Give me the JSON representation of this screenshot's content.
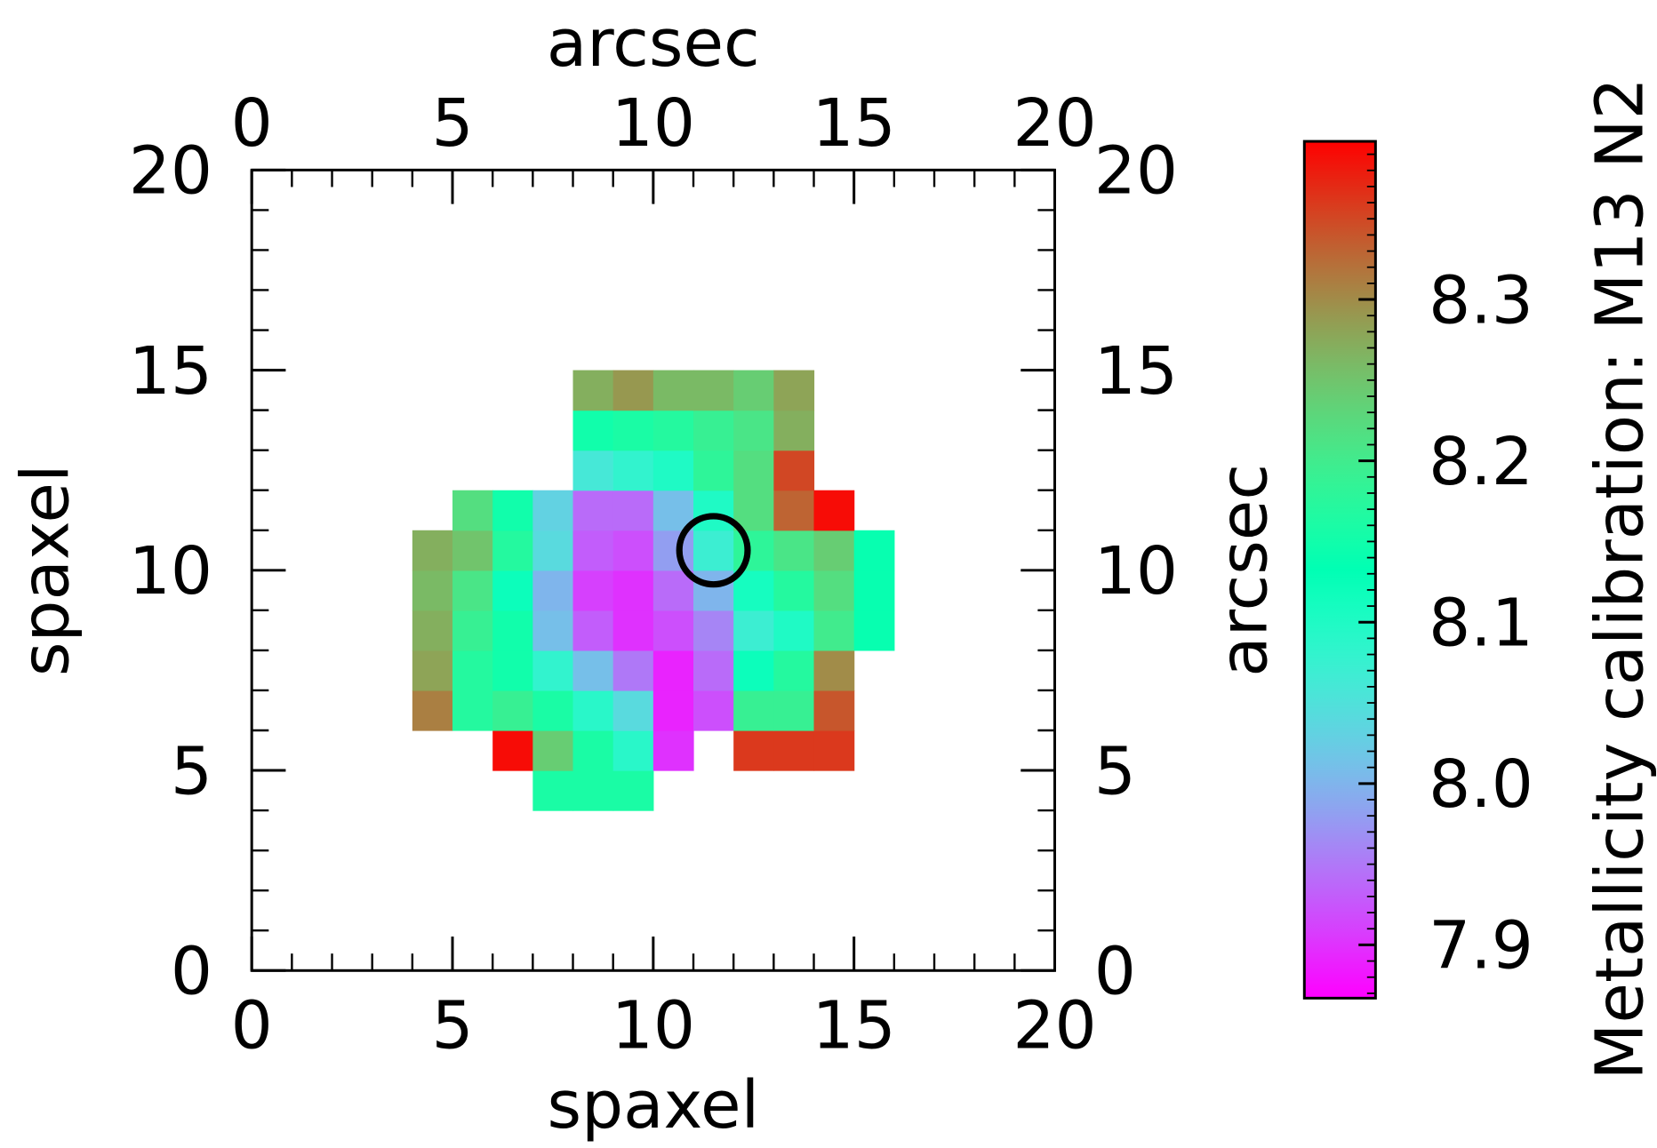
{
  "chart_data": {
    "type": "heatmap",
    "xlabel": "spaxel",
    "ylabel": "spaxel",
    "x2label": "arcsec",
    "y2label": "arcsec",
    "xlim": [
      0,
      20
    ],
    "ylim": [
      0,
      20
    ],
    "x2lim": [
      0,
      20
    ],
    "y2lim": [
      0,
      20
    ],
    "xticks": [
      0,
      5,
      10,
      15,
      20
    ],
    "yticks": [
      0,
      5,
      10,
      15,
      20
    ],
    "x2ticks": [
      0,
      5,
      10,
      15,
      20
    ],
    "y2ticks": [
      0,
      5,
      10,
      15,
      20
    ],
    "minor_ticks": [
      0,
      1,
      2,
      3,
      4,
      5,
      6,
      7,
      8,
      9,
      10,
      11,
      12,
      13,
      14,
      15,
      16,
      17,
      18,
      19,
      20
    ],
    "x": [
      4,
      5,
      6,
      7,
      8,
      9,
      10,
      11,
      12,
      13,
      14,
      15
    ],
    "y": [
      4,
      5,
      6,
      7,
      8,
      9,
      10,
      11,
      12,
      13,
      14
    ],
    "z": [
      [
        null,
        null,
        null,
        8.16,
        8.16,
        8.16,
        null,
        null,
        null,
        null,
        null,
        null
      ],
      [
        null,
        null,
        8.39,
        8.24,
        8.16,
        8.09,
        7.9,
        null,
        8.36,
        8.36,
        8.36,
        null
      ],
      [
        8.31,
        8.17,
        8.19,
        8.16,
        8.09,
        8.04,
        7.89,
        7.92,
        8.19,
        8.19,
        8.34,
        null
      ],
      [
        8.28,
        8.17,
        8.15,
        8.08,
        8.01,
        7.95,
        7.89,
        7.94,
        8.12,
        8.17,
        8.3,
        null
      ],
      [
        8.27,
        8.19,
        8.15,
        8.01,
        7.93,
        7.9,
        7.92,
        7.96,
        8.07,
        8.1,
        8.2,
        8.14
      ],
      [
        8.26,
        8.21,
        8.12,
        8.0,
        7.91,
        7.9,
        7.94,
        8.0,
        8.11,
        8.17,
        8.22,
        8.14
      ],
      [
        8.27,
        8.25,
        8.17,
        8.04,
        7.93,
        7.92,
        7.98,
        8.07,
        8.18,
        8.21,
        8.24,
        8.14
      ],
      [
        null,
        8.22,
        8.15,
        8.03,
        7.94,
        7.94,
        8.01,
        8.1,
        8.22,
        8.33,
        8.39,
        null
      ],
      [
        null,
        null,
        null,
        null,
        8.06,
        8.08,
        8.1,
        8.18,
        8.22,
        8.35,
        null,
        null
      ],
      [
        null,
        null,
        null,
        null,
        8.15,
        8.16,
        8.17,
        8.19,
        8.21,
        8.27,
        null,
        null
      ],
      [
        null,
        null,
        null,
        null,
        8.27,
        8.29,
        8.26,
        8.26,
        8.24,
        8.28,
        null,
        null
      ]
    ],
    "colormap": "rainbow",
    "circle": {
      "x": 11.5,
      "y": 10.5,
      "radius": 0.85,
      "color": "#000000"
    },
    "colorbar": {
      "label": "Metallicity calibration: M13 N2",
      "clim": [
        7.867,
        8.398
      ],
      "ticks": [
        7.9,
        {
          "value": 8,
          "label": "8.0"
        },
        8.1,
        8.2,
        8.3
      ],
      "minor_ticks": [
        7.87,
        7.88,
        7.89,
        7.9,
        7.91,
        7.92,
        7.93,
        7.94,
        7.95,
        7.96,
        7.97,
        7.98,
        7.99,
        8.0,
        8.01,
        8.02,
        8.03,
        8.04,
        8.05,
        8.06,
        8.07,
        8.08,
        8.09,
        8.1,
        8.11,
        8.12,
        8.13,
        8.14,
        8.15,
        8.16,
        8.17,
        8.18,
        8.19,
        8.2,
        8.21,
        8.22,
        8.23,
        8.24,
        8.25,
        8.26,
        8.27,
        8.28,
        8.29,
        8.3,
        8.31,
        8.32,
        8.33,
        8.34,
        8.35,
        8.36,
        8.37,
        8.38,
        8.39
      ]
    }
  }
}
